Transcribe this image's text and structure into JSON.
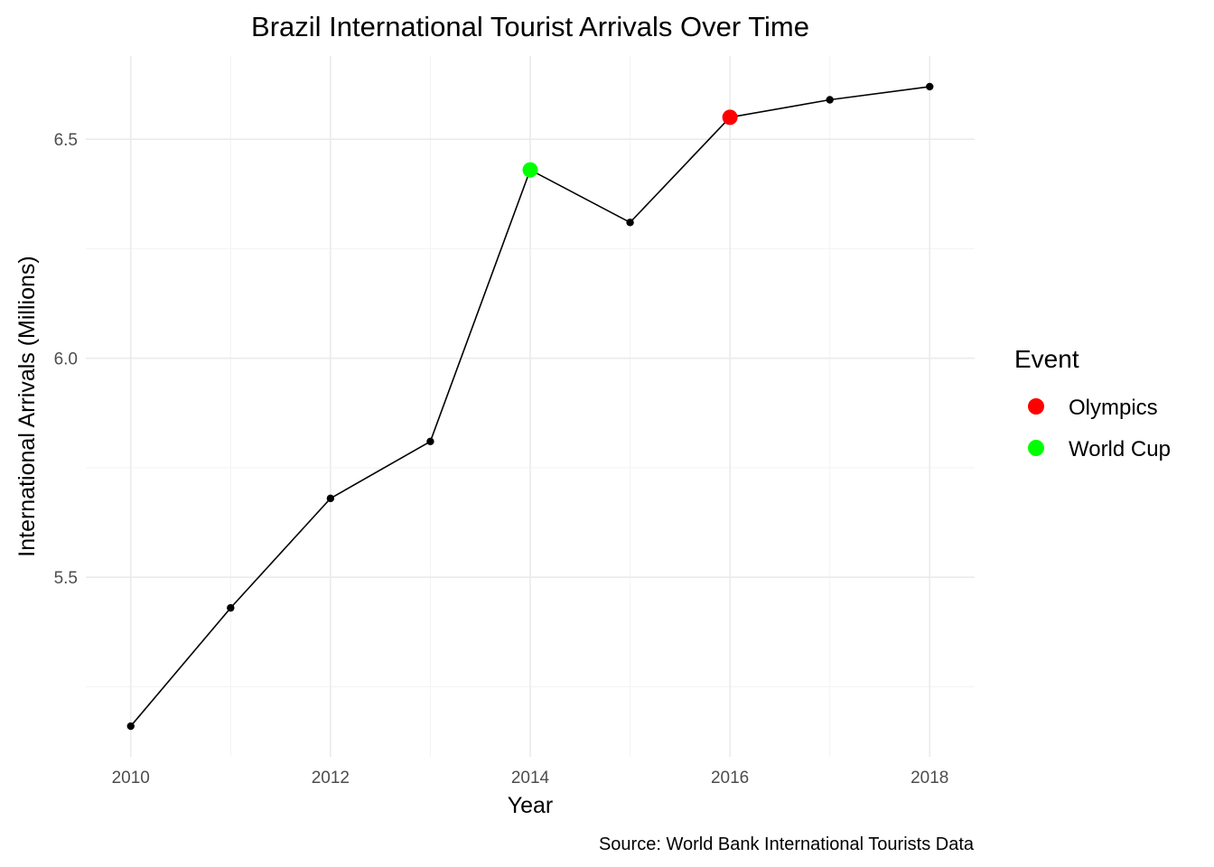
{
  "chart_data": {
    "type": "line",
    "title": "Brazil International Tourist Arrivals Over Time",
    "xlabel": "Year",
    "ylabel": "International Arrivals (Millions)",
    "caption": "Source: World Bank International Tourists Data",
    "x": [
      2010,
      2011,
      2012,
      2013,
      2014,
      2015,
      2016,
      2017,
      2018
    ],
    "series": [
      {
        "values": [
          5.16,
          5.43,
          5.68,
          5.81,
          6.43,
          6.31,
          6.55,
          6.59,
          6.62
        ]
      }
    ],
    "xlim": [
      2009.55,
      2018.45
    ],
    "ylim": [
      5.09,
      6.69
    ],
    "x_ticks": [
      2010,
      2012,
      2014,
      2016,
      2018
    ],
    "x_tick_labels": [
      "2010",
      "2012",
      "2014",
      "2016",
      "2018"
    ],
    "y_ticks": [
      5.5,
      6.0,
      6.5
    ],
    "y_tick_labels": [
      "5.5",
      "6.0",
      "6.5"
    ],
    "grid": true,
    "highlights": [
      {
        "x": 2014,
        "y": 6.43,
        "event": "World Cup"
      },
      {
        "x": 2016,
        "y": 6.55,
        "event": "Olympics"
      }
    ],
    "legend": {
      "title": "Event",
      "position": "right",
      "items": [
        {
          "label": "Olympics",
          "color": "#ff0000"
        },
        {
          "label": "World Cup",
          "color": "#00ff00"
        }
      ]
    },
    "line_color": "#000000"
  }
}
